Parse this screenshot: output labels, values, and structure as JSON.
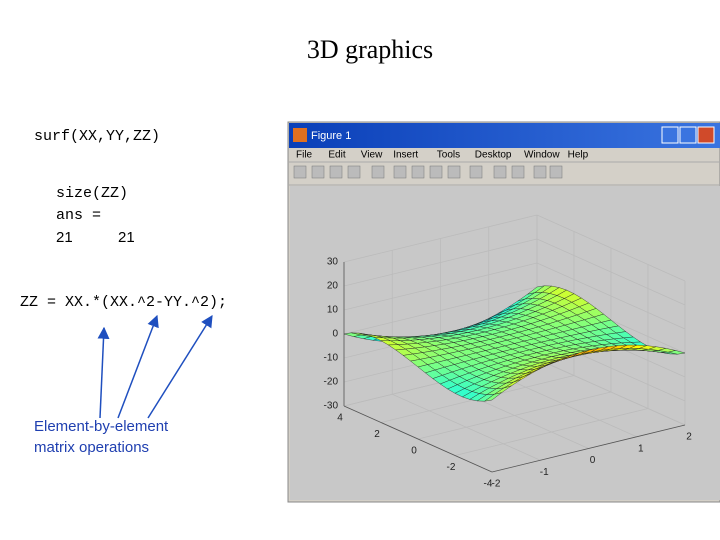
{
  "slide": {
    "title": "3D graphics",
    "command": "surf(XX,YY,ZZ)",
    "size_command": "size(ZZ)",
    "ans": "ans =",
    "size_values": [
      "21",
      "21"
    ],
    "expression": "ZZ = XX.*(XX.^2-YY.^2);",
    "annotation": [
      "Element-by-element",
      "matrix operations"
    ]
  },
  "window": {
    "title": "Figure 1",
    "menu": [
      "File",
      "Edit",
      "View",
      "Insert",
      "Tools",
      "Desktop",
      "Window",
      "Help"
    ]
  },
  "axes": {
    "z_ticks": [
      "30",
      "20",
      "10",
      "0",
      "-10",
      "-20",
      "-30"
    ],
    "x_ticks": [
      "2",
      "1",
      "0",
      "-1",
      "-2"
    ],
    "y_ticks": [
      "4",
      "2",
      "0",
      "-2",
      "-4"
    ]
  }
}
